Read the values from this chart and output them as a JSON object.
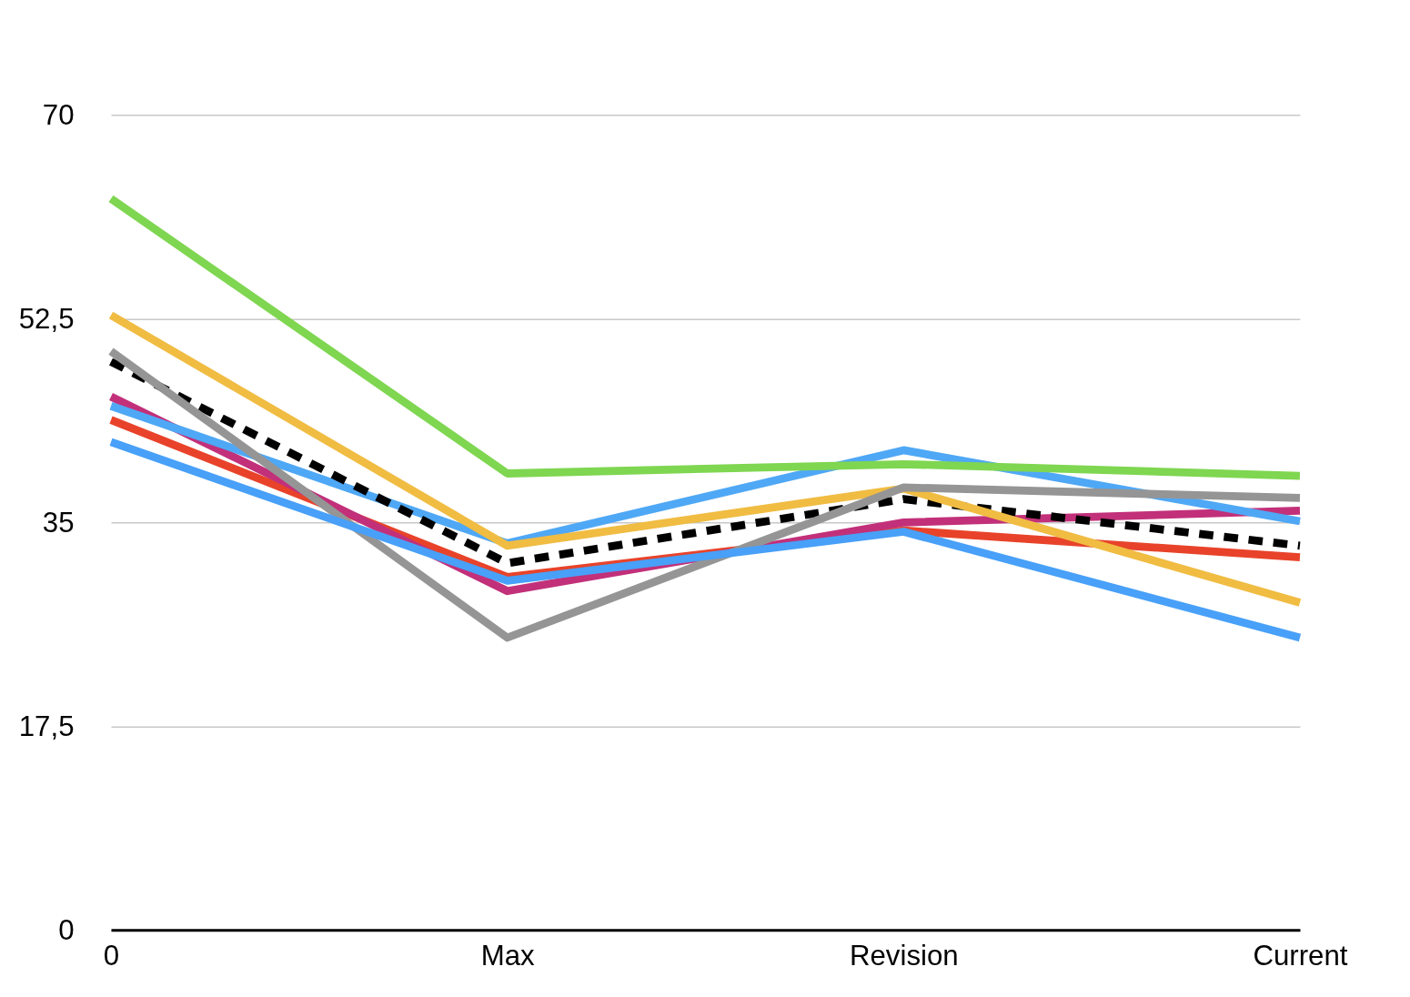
{
  "chart_data": {
    "type": "line",
    "categories": [
      "0",
      "Max",
      "Revision",
      "Current"
    ],
    "series": [
      {
        "color": "#e8432a",
        "values": [
          43.8,
          30.3,
          34.3,
          32.0
        ]
      },
      {
        "color": "#c2307a",
        "values": [
          45.8,
          29.1,
          35.0,
          36.0
        ]
      },
      {
        "color": "#4fa8f5",
        "values": [
          45.0,
          33.2,
          41.2,
          35.1
        ]
      },
      {
        "color": "#000000",
        "line_style": "dashed",
        "values": [
          48.8,
          31.5,
          37.0,
          33.0
        ]
      },
      {
        "color": "#f0bc42",
        "values": [
          52.8,
          33.0,
          37.9,
          28.1
        ]
      },
      {
        "color": "#959595",
        "values": [
          49.7,
          25.1,
          38.0,
          37.1
        ]
      },
      {
        "color": "#7fd651",
        "values": [
          62.8,
          39.2,
          40.0,
          39.0
        ]
      },
      {
        "color": "#48a0f8",
        "values": [
          41.9,
          30.0,
          34.2,
          25.1
        ]
      }
    ],
    "ylim": [
      0,
      70
    ],
    "yticks": [
      0,
      {
        "value": 17.5,
        "label": "17,5"
      },
      35,
      {
        "value": 52.5,
        "label": "52,5"
      },
      70
    ],
    "grid": "y",
    "marker": "none",
    "line_style": "solid"
  }
}
